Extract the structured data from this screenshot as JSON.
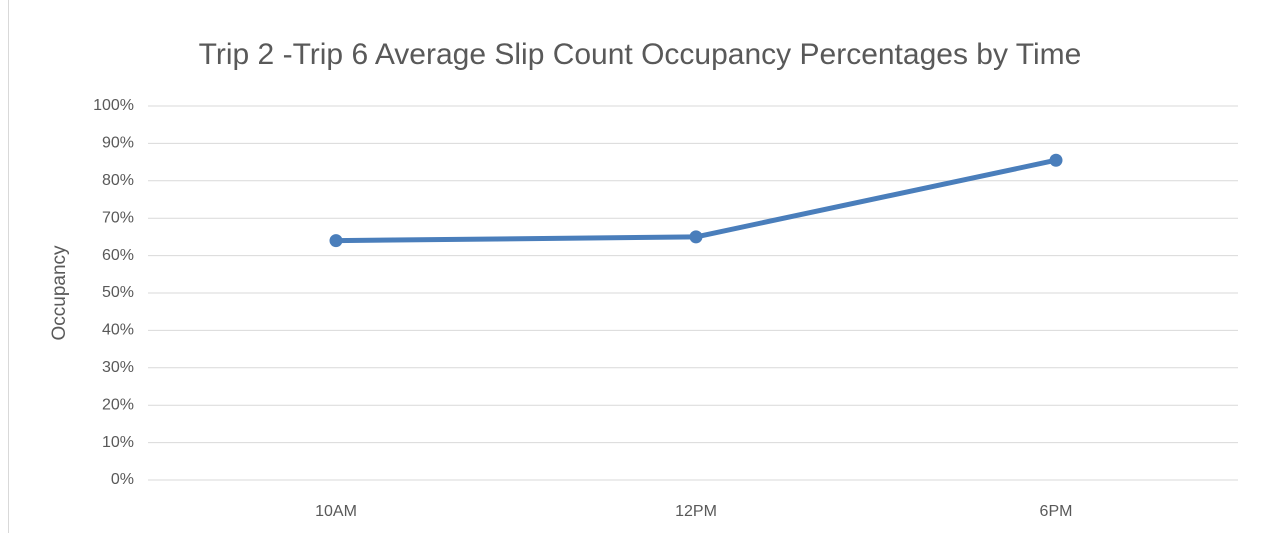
{
  "chart_data": {
    "type": "line",
    "title": "Trip 2 -Trip 6 Average Slip Count Occupancy Percentages by Time",
    "y_label": "Occupancy",
    "categories": [
      "10AM",
      "12PM",
      "6PM"
    ],
    "series": [
      {
        "name": "Occupancy",
        "color": "#4a7ebb",
        "values": [
          64,
          65,
          85.5
        ]
      }
    ],
    "ylim": [
      0,
      100
    ],
    "yticks": [
      {
        "value": 0,
        "label": "0%"
      },
      {
        "value": 10,
        "label": "10%"
      },
      {
        "value": 20,
        "label": "20%"
      },
      {
        "value": 30,
        "label": "30%"
      },
      {
        "value": 40,
        "label": "40%"
      },
      {
        "value": 50,
        "label": "50%"
      },
      {
        "value": 60,
        "label": "60%"
      },
      {
        "value": 70,
        "label": "70%"
      },
      {
        "value": 80,
        "label": "80%"
      },
      {
        "value": 90,
        "label": "90%"
      },
      {
        "value": 100,
        "label": "100%"
      }
    ],
    "grid": true
  }
}
